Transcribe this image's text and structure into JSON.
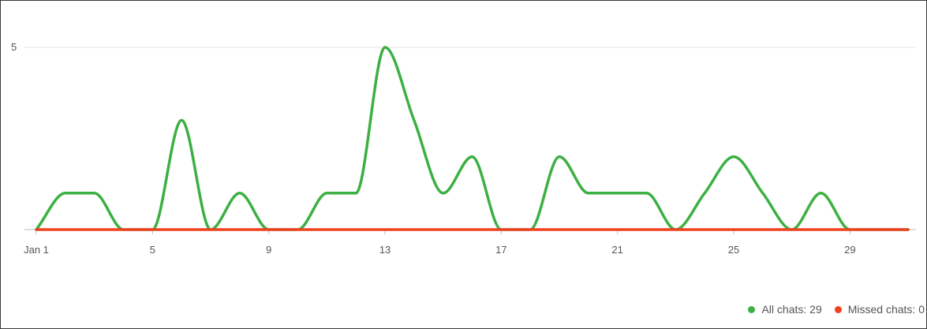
{
  "chart_data": {
    "type": "line",
    "x": [
      "Jan 1",
      "2",
      "3",
      "4",
      "5",
      "6",
      "7",
      "8",
      "9",
      "10",
      "11",
      "12",
      "13",
      "14",
      "15",
      "16",
      "17",
      "18",
      "19",
      "20",
      "21",
      "22",
      "23",
      "24",
      "25",
      "26",
      "27",
      "28",
      "29",
      "30",
      "31"
    ],
    "x_tick_labels": [
      "Jan 1",
      "5",
      "9",
      "13",
      "17",
      "21",
      "25",
      "29"
    ],
    "y_tick_labels": [
      "5"
    ],
    "ylim": [
      0,
      5
    ],
    "grid": true,
    "legend_position": "bottom-right",
    "series": [
      {
        "name": "All chats",
        "legend_label": "All chats: 29",
        "color": "#3cb043",
        "values": [
          0,
          1,
          1,
          0,
          0,
          3,
          0,
          1,
          0,
          0,
          1,
          1,
          5,
          3,
          1,
          2,
          0,
          0,
          2,
          1,
          1,
          1,
          0,
          1,
          2,
          1,
          0,
          1,
          0,
          0,
          0
        ]
      },
      {
        "name": "Missed chats",
        "legend_label": "Missed chats: 0",
        "color": "#f0411f",
        "values": [
          0,
          0,
          0,
          0,
          0,
          0,
          0,
          0,
          0,
          0,
          0,
          0,
          0,
          0,
          0,
          0,
          0,
          0,
          0,
          0,
          0,
          0,
          0,
          0,
          0,
          0,
          0,
          0,
          0,
          0,
          0
        ]
      }
    ]
  }
}
